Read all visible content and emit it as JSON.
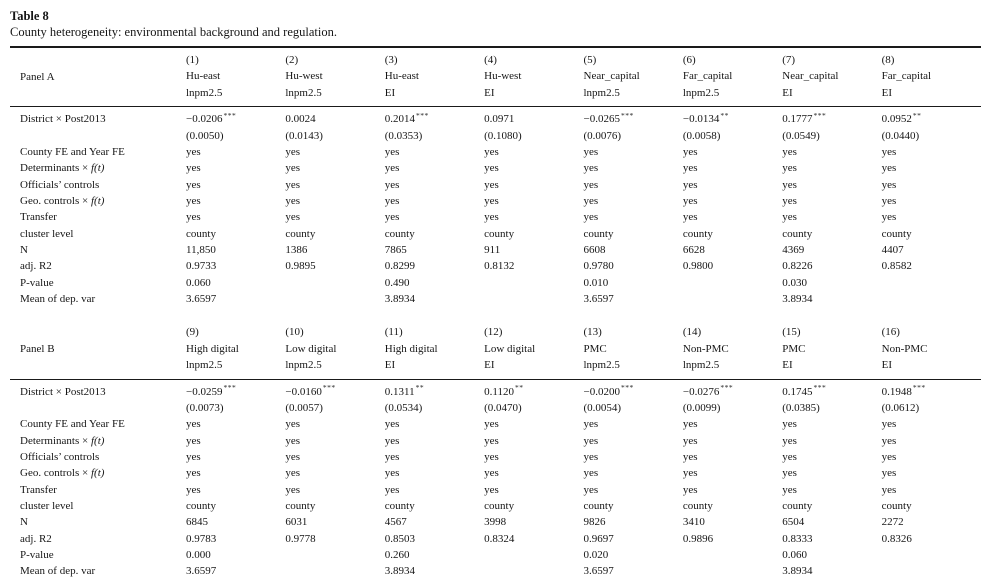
{
  "doc": {
    "title": "Table 8",
    "caption": "County heterogeneity: environmental background and regulation."
  },
  "panels": [
    {
      "label": "Panel A",
      "columns": [
        {
          "num": "(1)",
          "group": "Hu-east",
          "dep": "lnpm2.5"
        },
        {
          "num": "(2)",
          "group": "Hu-west",
          "dep": "lnpm2.5"
        },
        {
          "num": "(3)",
          "group": "Hu-east",
          "dep": "EI"
        },
        {
          "num": "(4)",
          "group": "Hu-west",
          "dep": "EI"
        },
        {
          "num": "(5)",
          "group": "Near_capital",
          "dep": "lnpm2.5"
        },
        {
          "num": "(6)",
          "group": "Far_capital",
          "dep": "lnpm2.5"
        },
        {
          "num": "(7)",
          "group": "Near_capital",
          "dep": "EI"
        },
        {
          "num": "(8)",
          "group": "Far_capital",
          "dep": "EI"
        }
      ],
      "rows": [
        {
          "label": "District × Post2013",
          "cells": [
            {
              "v": "−0.0206",
              "s": "***"
            },
            {
              "v": "0.0024",
              "s": ""
            },
            {
              "v": "0.2014",
              "s": "***"
            },
            {
              "v": "0.0971",
              "s": ""
            },
            {
              "v": "−0.0265",
              "s": "***"
            },
            {
              "v": "−0.0134",
              "s": "**"
            },
            {
              "v": "0.1777",
              "s": "***"
            },
            {
              "v": "0.0952",
              "s": "**"
            }
          ]
        },
        {
          "label": "",
          "cells": [
            "(0.0050)",
            "(0.0143)",
            "(0.0353)",
            "(0.1080)",
            "(0.0076)",
            "(0.0058)",
            "(0.0549)",
            "(0.0440)"
          ]
        },
        {
          "label": "County FE and Year FE",
          "cells": [
            "yes",
            "yes",
            "yes",
            "yes",
            "yes",
            "yes",
            "yes",
            "yes"
          ]
        },
        {
          "label": "Determinants × f(t)",
          "cells": [
            "yes",
            "yes",
            "yes",
            "yes",
            "yes",
            "yes",
            "yes",
            "yes"
          ]
        },
        {
          "label": "Officials’ controls",
          "cells": [
            "yes",
            "yes",
            "yes",
            "yes",
            "yes",
            "yes",
            "yes",
            "yes"
          ]
        },
        {
          "label": "Geo. controls × f(t)",
          "cells": [
            "yes",
            "yes",
            "yes",
            "yes",
            "yes",
            "yes",
            "yes",
            "yes"
          ]
        },
        {
          "label": "Transfer",
          "cells": [
            "yes",
            "yes",
            "yes",
            "yes",
            "yes",
            "yes",
            "yes",
            "yes"
          ]
        },
        {
          "label": "cluster level",
          "cells": [
            "county",
            "county",
            "county",
            "county",
            "county",
            "county",
            "county",
            "county"
          ]
        },
        {
          "label": "N",
          "cells": [
            "11,850",
            "1386",
            "7865",
            "911",
            "6608",
            "6628",
            "4369",
            "4407"
          ]
        },
        {
          "label": "adj. R2",
          "cells": [
            "0.9733",
            "0.9895",
            "0.8299",
            "0.8132",
            "0.9780",
            "0.9800",
            "0.8226",
            "0.8582"
          ]
        },
        {
          "label": "P-value",
          "cells": [
            "0.060",
            "",
            "0.490",
            "",
            "0.010",
            "",
            "0.030",
            ""
          ]
        },
        {
          "label": "Mean of dep. var",
          "cells": [
            "3.6597",
            "",
            "3.8934",
            "",
            "3.6597",
            "",
            "3.8934",
            ""
          ]
        }
      ]
    },
    {
      "label": "Panel B",
      "columns": [
        {
          "num": "(9)",
          "group": "High digital",
          "dep": "lnpm2.5"
        },
        {
          "num": "(10)",
          "group": "Low digital",
          "dep": "lnpm2.5"
        },
        {
          "num": "(11)",
          "group": "High digital",
          "dep": "EI"
        },
        {
          "num": "(12)",
          "group": "Low digital",
          "dep": "EI"
        },
        {
          "num": "(13)",
          "group": "PMC",
          "dep": "lnpm2.5"
        },
        {
          "num": "(14)",
          "group": "Non-PMC",
          "dep": "lnpm2.5"
        },
        {
          "num": "(15)",
          "group": "PMC",
          "dep": "EI"
        },
        {
          "num": "(16)",
          "group": "Non-PMC",
          "dep": "EI"
        }
      ],
      "rows": [
        {
          "label": "District × Post2013",
          "cells": [
            {
              "v": "−0.0259",
              "s": "***"
            },
            {
              "v": "−0.0160",
              "s": "***"
            },
            {
              "v": "0.1311",
              "s": "**"
            },
            {
              "v": "0.1120",
              "s": "**"
            },
            {
              "v": "−0.0200",
              "s": "***"
            },
            {
              "v": "−0.0276",
              "s": "***"
            },
            {
              "v": "0.1745",
              "s": "***"
            },
            {
              "v": "0.1948",
              "s": "***"
            }
          ]
        },
        {
          "label": "",
          "cells": [
            "(0.0073)",
            "(0.0057)",
            "(0.0534)",
            "(0.0470)",
            "(0.0054)",
            "(0.0099)",
            "(0.0385)",
            "(0.0612)"
          ]
        },
        {
          "label": "County FE and Year FE",
          "cells": [
            "yes",
            "yes",
            "yes",
            "yes",
            "yes",
            "yes",
            "yes",
            "yes"
          ]
        },
        {
          "label": "Determinants × f(t)",
          "cells": [
            "yes",
            "yes",
            "yes",
            "yes",
            "yes",
            "yes",
            "yes",
            "yes"
          ]
        },
        {
          "label": "Officials’ controls",
          "cells": [
            "yes",
            "yes",
            "yes",
            "yes",
            "yes",
            "yes",
            "yes",
            "yes"
          ]
        },
        {
          "label": "Geo. controls × f(t)",
          "cells": [
            "yes",
            "yes",
            "yes",
            "yes",
            "yes",
            "yes",
            "yes",
            "yes"
          ]
        },
        {
          "label": "Transfer",
          "cells": [
            "yes",
            "yes",
            "yes",
            "yes",
            "yes",
            "yes",
            "yes",
            "yes"
          ]
        },
        {
          "label": "cluster level",
          "cells": [
            "county",
            "county",
            "county",
            "county",
            "county",
            "county",
            "county",
            "county"
          ]
        },
        {
          "label": "N",
          "cells": [
            "6845",
            "6031",
            "4567",
            "3998",
            "9826",
            "3410",
            "6504",
            "2272"
          ]
        },
        {
          "label": "adj. R2",
          "cells": [
            "0.9783",
            "0.9778",
            "0.8503",
            "0.8324",
            "0.9697",
            "0.9896",
            "0.8333",
            "0.8326"
          ]
        },
        {
          "label": "P-value",
          "cells": [
            "0.000",
            "",
            "0.260",
            "",
            "0.020",
            "",
            "0.060",
            ""
          ]
        },
        {
          "label": "Mean of dep. var",
          "cells": [
            "3.6597",
            "",
            "3.8934",
            "",
            "3.6597",
            "",
            "3.8934",
            ""
          ]
        }
      ]
    }
  ]
}
